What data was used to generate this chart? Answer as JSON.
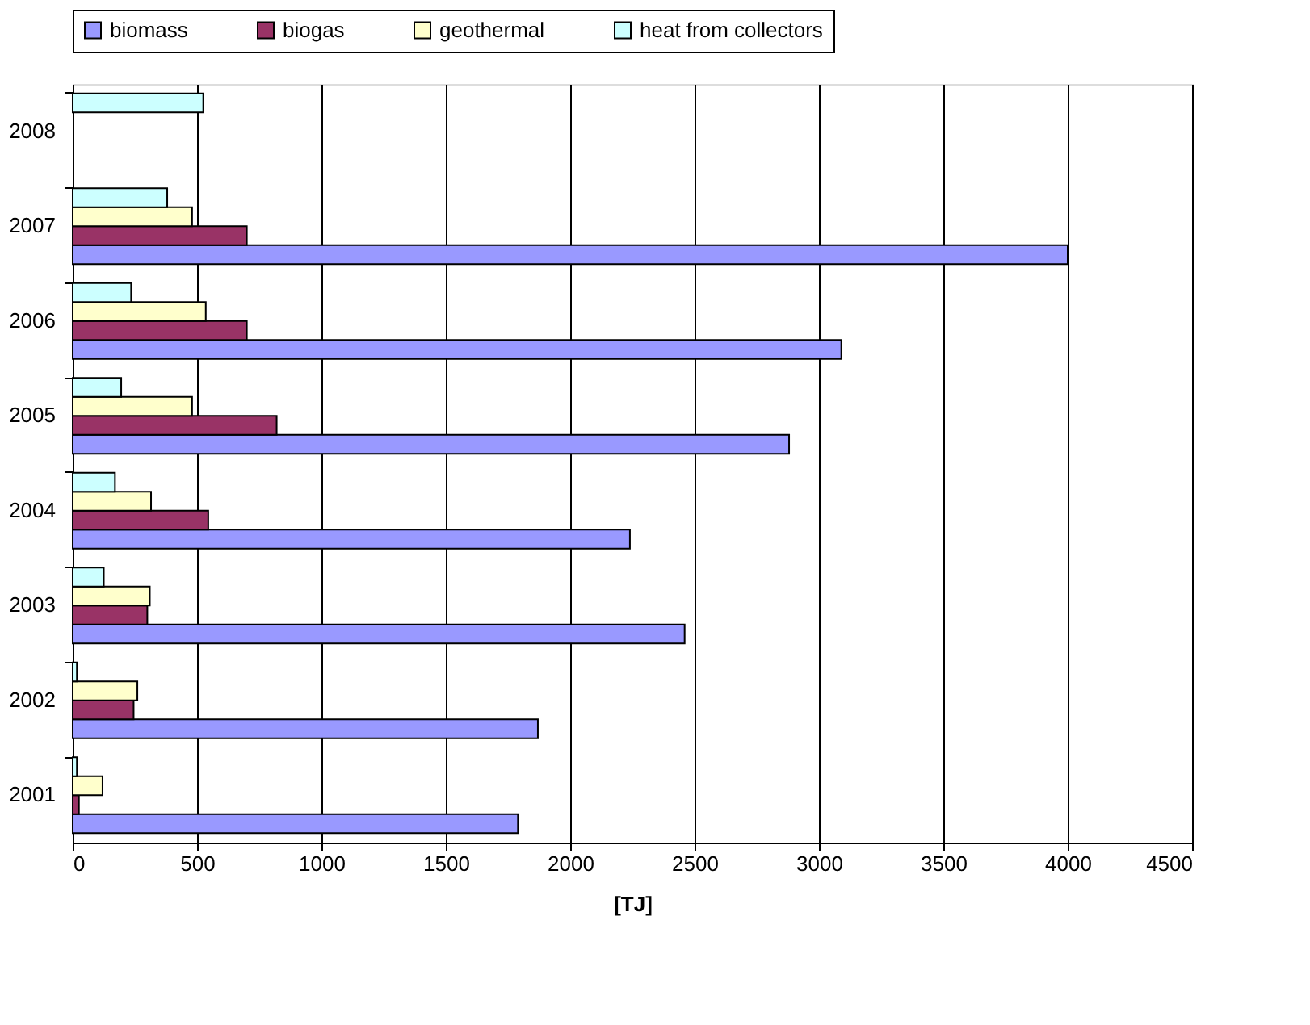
{
  "chart_data": {
    "type": "bar",
    "orientation": "horizontal",
    "xlabel": "[TJ]",
    "categories": [
      "2008",
      "2007",
      "2006",
      "2005",
      "2004",
      "2003",
      "2002",
      "2001"
    ],
    "series": [
      {
        "name": "biomass",
        "color": "#9999ff",
        "values": [
          null,
          4000,
          3090,
          2880,
          2240,
          2460,
          1870,
          1790
        ]
      },
      {
        "name": "biogas",
        "color": "#993366",
        "values": [
          null,
          700,
          700,
          820,
          545,
          300,
          245,
          25
        ]
      },
      {
        "name": "geothermal",
        "color": "#ffffcc",
        "values": [
          null,
          480,
          535,
          480,
          315,
          310,
          260,
          120
        ]
      },
      {
        "name": "heat from collectors",
        "color": "#ccffff",
        "values": [
          525,
          380,
          235,
          195,
          170,
          125,
          17,
          17
        ]
      }
    ],
    "xlim": [
      0,
      4500
    ],
    "xticks": [
      0,
      500,
      1000,
      1500,
      2000,
      2500,
      3000,
      3500,
      4000,
      4500
    ],
    "grid": "x",
    "legend": "top"
  }
}
